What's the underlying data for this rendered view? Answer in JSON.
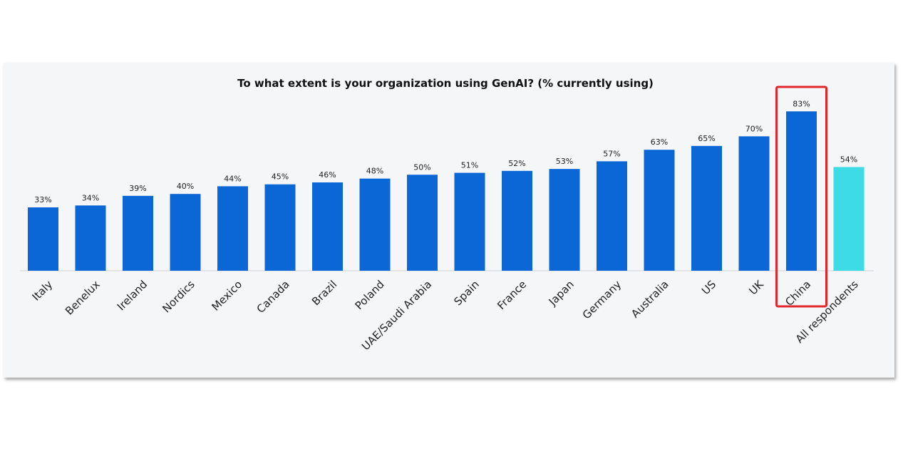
{
  "chart_data": {
    "type": "bar",
    "title": "To what extent is your organization using GenAI? (% currently using)",
    "xlabel": "",
    "ylabel": "",
    "ylim": [
      0,
      100
    ],
    "grid": false,
    "legend": "none",
    "categories": [
      "Italy",
      "Benelux",
      "Ireland",
      "Nordics",
      "Mexico",
      "Canada",
      "Brazil",
      "Poland",
      "UAE/Saudi Arabia",
      "Spain",
      "France",
      "Japan",
      "Germany",
      "Australia",
      "US",
      "UK",
      "China",
      "All respondents"
    ],
    "values": [
      33,
      34,
      39,
      40,
      44,
      45,
      46,
      48,
      50,
      51,
      52,
      53,
      57,
      63,
      65,
      70,
      83,
      54
    ],
    "value_labels": [
      "33%",
      "34%",
      "39%",
      "40%",
      "44%",
      "45%",
      "46%",
      "48%",
      "50%",
      "51%",
      "52%",
      "53%",
      "57%",
      "63%",
      "65%",
      "70%",
      "83%",
      "54%"
    ],
    "colors": {
      "bar": "#0b66d6",
      "summary_bar": "#3ddbe6",
      "highlight_box": "#e0262b",
      "baseline": "#cfd3d8"
    },
    "summary_category": "All respondents",
    "highlighted_category": "China"
  }
}
